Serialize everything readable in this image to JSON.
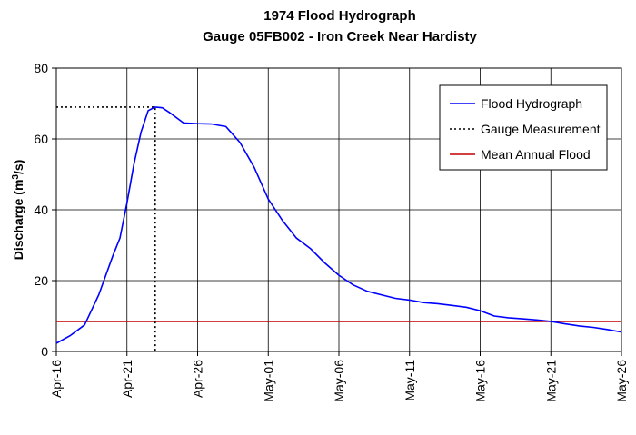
{
  "chart_data": {
    "type": "line",
    "title": "1974 Flood Hydrograph",
    "subtitle": "Gauge 05FB002 - Iron Creek Near Hardisty",
    "ylabel": "Discharge (m",
    "ylabel_sup": "3",
    "ylabel_end": "/s)",
    "xlabel": "",
    "ylim": [
      0,
      80
    ],
    "yticks": [
      0,
      20,
      40,
      60,
      80
    ],
    "xlim": [
      "1974-04-16",
      "1974-05-26"
    ],
    "xticks": [
      {
        "date": "1974-04-16",
        "label": "Apr-16"
      },
      {
        "date": "1974-04-21",
        "label": "Apr-21"
      },
      {
        "date": "1974-04-26",
        "label": "Apr-26"
      },
      {
        "date": "1974-05-01",
        "label": "May-01"
      },
      {
        "date": "1974-05-06",
        "label": "May-06"
      },
      {
        "date": "1974-05-11",
        "label": "May-11"
      },
      {
        "date": "1974-05-16",
        "label": "May-16"
      },
      {
        "date": "1974-05-21",
        "label": "May-21"
      },
      {
        "date": "1974-05-26",
        "label": "May-26"
      }
    ],
    "grid": true,
    "legend_position": "top-right",
    "series": [
      {
        "name": "Flood Hydrograph",
        "color": "#0000ff",
        "style": "solid",
        "points": [
          [
            "1974-04-16",
            2.3
          ],
          [
            "1974-04-17",
            4.5
          ],
          [
            "1974-04-18",
            7.5
          ],
          [
            "1974-04-19",
            16
          ],
          [
            "1974-04-20",
            27
          ],
          [
            "1974-04-20 12:00",
            32
          ],
          [
            "1974-04-21",
            42
          ],
          [
            "1974-04-21 12:00",
            53
          ],
          [
            "1974-04-22",
            62
          ],
          [
            "1974-04-22 12:00",
            68
          ],
          [
            "1974-04-23",
            69
          ],
          [
            "1974-04-23 12:00",
            68.8
          ],
          [
            "1974-04-24",
            67.5
          ],
          [
            "1974-04-25",
            64.5
          ],
          [
            "1974-04-26",
            64.3
          ],
          [
            "1974-04-27",
            64.2
          ],
          [
            "1974-04-28",
            63.5
          ],
          [
            "1974-04-29",
            59
          ],
          [
            "1974-04-30",
            52
          ],
          [
            "1974-05-01",
            43
          ],
          [
            "1974-05-02",
            37
          ],
          [
            "1974-05-03",
            32
          ],
          [
            "1974-05-04",
            29
          ],
          [
            "1974-05-05",
            25
          ],
          [
            "1974-05-06",
            21.5
          ],
          [
            "1974-05-07",
            18.8
          ],
          [
            "1974-05-08",
            17
          ],
          [
            "1974-05-09",
            16
          ],
          [
            "1974-05-10",
            15
          ],
          [
            "1974-05-11",
            14.5
          ],
          [
            "1974-05-12",
            13.8
          ],
          [
            "1974-05-13",
            13.5
          ],
          [
            "1974-05-14",
            13
          ],
          [
            "1974-05-15",
            12.5
          ],
          [
            "1974-05-16",
            11.5
          ],
          [
            "1974-05-17",
            10
          ],
          [
            "1974-05-18",
            9.5
          ],
          [
            "1974-05-19",
            9.2
          ],
          [
            "1974-05-20",
            8.9
          ],
          [
            "1974-05-21",
            8.5
          ],
          [
            "1974-05-22",
            7.8
          ],
          [
            "1974-05-23",
            7.2
          ],
          [
            "1974-05-24",
            6.8
          ],
          [
            "1974-05-25",
            6.2
          ],
          [
            "1974-05-26",
            5.5
          ]
        ]
      },
      {
        "name": "Gauge Measurement",
        "color": "#000000",
        "style": "dotted",
        "points": [
          [
            "1974-04-16",
            69
          ],
          [
            "1974-04-23",
            69
          ],
          [
            "1974-04-23",
            0
          ]
        ]
      },
      {
        "name": "Mean Annual Flood",
        "color": "#c00000",
        "style": "solid",
        "points": [
          [
            "1974-04-16",
            8.5
          ],
          [
            "1974-05-26",
            8.5
          ]
        ]
      }
    ]
  }
}
